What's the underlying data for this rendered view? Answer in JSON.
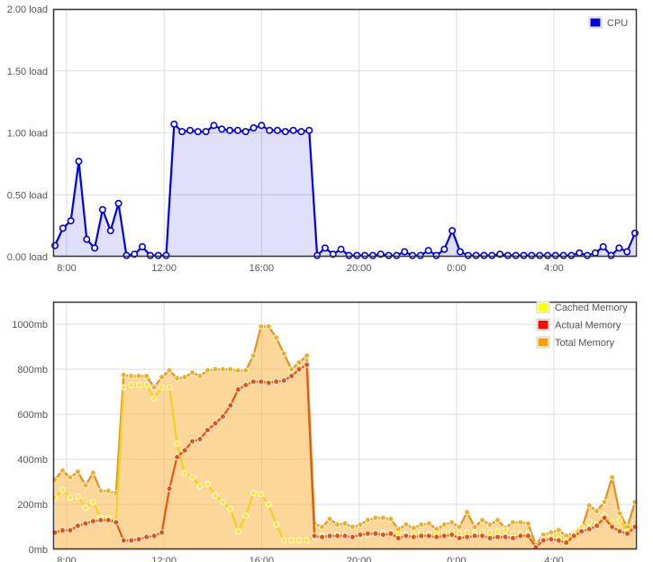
{
  "chart_data": [
    {
      "type": "line",
      "y_tick_labels": [
        "2.00 load",
        "1.50 load",
        "1.00 load",
        "0.50 load",
        "0.00 load"
      ],
      "y_ticks": [
        2.0,
        1.5,
        1.0,
        0.5,
        0.0
      ],
      "x_tick_labels": [
        "8:00",
        "12:00",
        "16:00",
        "20:00",
        "0:00",
        "4:00"
      ],
      "ylim": [
        0,
        2.0
      ],
      "grid": true,
      "legend_position": "top-right",
      "series": [
        {
          "name": "CPU",
          "color": "#0000dd",
          "fill": "rgba(0,0,220,0.12)",
          "values": [
            0.09,
            0.23,
            0.29,
            0.77,
            0.14,
            0.07,
            0.38,
            0.21,
            0.43,
            0.01,
            0.02,
            0.08,
            0.01,
            0.01,
            0.01,
            1.07,
            1.01,
            1.02,
            1.01,
            1.01,
            1.06,
            1.03,
            1.02,
            1.02,
            1.01,
            1.04,
            1.06,
            1.02,
            1.02,
            1.01,
            1.02,
            1.01,
            1.02,
            0.01,
            0.07,
            0.02,
            0.06,
            0.01,
            0.01,
            0.01,
            0.01,
            0.02,
            0.01,
            0.01,
            0.04,
            0.01,
            0.01,
            0.05,
            0.01,
            0.06,
            0.21,
            0.04,
            0.01,
            0.01,
            0.01,
            0.01,
            0.02,
            0.01,
            0.01,
            0.01,
            0.01,
            0.01,
            0.01,
            0.01,
            0.01,
            0.01,
            0.03,
            0.01,
            0.03,
            0.08,
            0.01,
            0.07,
            0.04,
            0.19
          ]
        }
      ]
    },
    {
      "type": "area",
      "y_tick_labels": [
        "1000mb",
        "800mb",
        "600mb",
        "400mb",
        "200mb",
        "0mb"
      ],
      "y_ticks": [
        1000,
        800,
        600,
        400,
        200,
        0
      ],
      "x_tick_labels": [
        "8:00",
        "12:00",
        "16:00",
        "20:00",
        "0:00",
        "4:00"
      ],
      "ylim": [
        0,
        1100
      ],
      "grid": true,
      "legend_position": "top-right",
      "series": [
        {
          "name": "Cached Memory",
          "color": "#f2d21e",
          "marker": "#ffe24a",
          "swatch": "#ffff00",
          "values": [
            230,
            265,
            230,
            235,
            185,
            210,
            140,
            140,
            120,
            720,
            730,
            730,
            730,
            670,
            720,
            720,
            470,
            340,
            320,
            280,
            290,
            240,
            210,
            180,
            80,
            150,
            250,
            245,
            200,
            110,
            40,
            40,
            40,
            40,
            55,
            60,
            60,
            65,
            60,
            55,
            60,
            65,
            70,
            75,
            70,
            70,
            65,
            65,
            75,
            70,
            70,
            75,
            80,
            70,
            75,
            70,
            75,
            75,
            80,
            85,
            70,
            70,
            70,
            10,
            45,
            55,
            65,
            40,
            70,
            100,
            120,
            110,
            150,
            120,
            130,
            80,
            120
          ]
        },
        {
          "name": "Actual Memory",
          "color": "#e25a10",
          "marker": "#e85010",
          "swatch": "#ee1100",
          "values": [
            75,
            85,
            85,
            105,
            115,
            125,
            130,
            130,
            120,
            40,
            40,
            45,
            55,
            60,
            75,
            270,
            410,
            440,
            480,
            490,
            530,
            560,
            590,
            640,
            710,
            730,
            745,
            745,
            740,
            745,
            750,
            770,
            800,
            820,
            60,
            55,
            60,
            60,
            60,
            55,
            65,
            70,
            70,
            65,
            70,
            50,
            60,
            55,
            60,
            60,
            55,
            60,
            65,
            50,
            55,
            60,
            60,
            50,
            55,
            55,
            50,
            60,
            60,
            10,
            40,
            45,
            40,
            30,
            60,
            80,
            90,
            105,
            140,
            100,
            80,
            70,
            100
          ]
        },
        {
          "name": "Total Memory",
          "color": "#e0951e",
          "marker": "#f2b020",
          "swatch": "#f5a100",
          "values": [
            310,
            350,
            320,
            345,
            285,
            340,
            260,
            260,
            250,
            775,
            770,
            770,
            770,
            720,
            765,
            795,
            760,
            765,
            785,
            770,
            795,
            800,
            800,
            800,
            795,
            795,
            860,
            990,
            990,
            940,
            870,
            800,
            830,
            860,
            115,
            100,
            135,
            110,
            115,
            100,
            110,
            130,
            140,
            140,
            135,
            90,
            110,
            95,
            110,
            115,
            90,
            110,
            120,
            100,
            165,
            100,
            130,
            110,
            130,
            95,
            120,
            120,
            115,
            20,
            65,
            75,
            85,
            60,
            75,
            90,
            195,
            170,
            210,
            320,
            160,
            100,
            210
          ]
        }
      ]
    }
  ]
}
